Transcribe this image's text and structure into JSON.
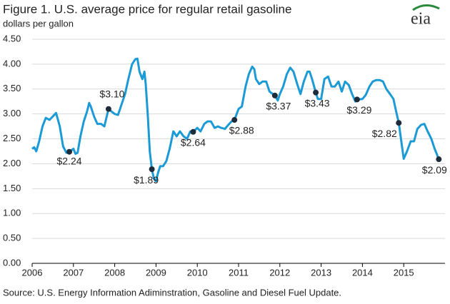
{
  "chart_data": {
    "type": "line",
    "title": "Figure 1. U.S. average price for regular retail gasoline",
    "subtitle": "dollars per gallon",
    "source": "Source: U.S. Energy Information Adiminstration, Gasoline and Diesel Fuel Update.",
    "logo": "eia",
    "grid": true,
    "xlim": [
      2006,
      2016
    ],
    "xticks": [
      2006,
      2007,
      2008,
      2009,
      2010,
      2011,
      2012,
      2013,
      2014,
      2015
    ],
    "ylim": [
      0,
      4.5
    ],
    "yticks": [
      {
        "value": 0,
        "label": "0.00"
      },
      {
        "value": 0.5,
        "label": "0.50"
      },
      {
        "value": 1,
        "label": "1.00"
      },
      {
        "value": 1.5,
        "label": "1.50"
      },
      {
        "value": 2,
        "label": "2.00"
      },
      {
        "value": 2.5,
        "label": "2.50"
      },
      {
        "value": 3,
        "label": "3.00"
      },
      {
        "value": 3.5,
        "label": "3.50"
      },
      {
        "value": 4,
        "label": "4.00"
      },
      {
        "value": 4.5,
        "label": "4.50"
      }
    ],
    "series": [
      {
        "color": "#1b9ad6",
        "x": [
          2006.0,
          2006.05,
          2006.1,
          2006.17,
          2006.25,
          2006.33,
          2006.42,
          2006.5,
          2006.58,
          2006.67,
          2006.75,
          2006.83,
          2006.9,
          2007.0,
          2007.05,
          2007.1,
          2007.17,
          2007.25,
          2007.33,
          2007.38,
          2007.42,
          2007.5,
          2007.58,
          2007.67,
          2007.75,
          2007.85,
          2007.92,
          2008.0,
          2008.08,
          2008.17,
          2008.25,
          2008.33,
          2008.42,
          2008.5,
          2008.55,
          2008.6,
          2008.67,
          2008.72,
          2008.75,
          2008.8,
          2008.85,
          2008.9,
          2008.95,
          2009.0,
          2009.05,
          2009.1,
          2009.17,
          2009.25,
          2009.33,
          2009.42,
          2009.5,
          2009.58,
          2009.67,
          2009.75,
          2009.83,
          2009.9,
          2010.0,
          2010.08,
          2010.17,
          2010.25,
          2010.33,
          2010.42,
          2010.5,
          2010.58,
          2010.67,
          2010.75,
          2010.83,
          2010.9,
          2011.0,
          2011.08,
          2011.17,
          2011.25,
          2011.33,
          2011.38,
          2011.42,
          2011.5,
          2011.58,
          2011.67,
          2011.75,
          2011.83,
          2011.88,
          2011.95,
          2012.0,
          2012.08,
          2012.17,
          2012.25,
          2012.33,
          2012.42,
          2012.5,
          2012.58,
          2012.67,
          2012.72,
          2012.78,
          2012.87,
          2012.92,
          2013.0,
          2013.08,
          2013.17,
          2013.25,
          2013.33,
          2013.42,
          2013.5,
          2013.58,
          2013.67,
          2013.75,
          2013.83,
          2013.87,
          2014.0,
          2014.08,
          2014.17,
          2014.25,
          2014.33,
          2014.42,
          2014.5,
          2014.58,
          2014.67,
          2014.75,
          2014.83,
          2014.88,
          2014.95,
          2015.0,
          2015.08,
          2015.17,
          2015.25,
          2015.33,
          2015.42,
          2015.5,
          2015.58,
          2015.67,
          2015.75,
          2015.8,
          2015.85
        ],
        "values": [
          2.3,
          2.33,
          2.25,
          2.45,
          2.75,
          2.92,
          2.88,
          2.95,
          3.02,
          2.75,
          2.35,
          2.22,
          2.24,
          2.3,
          2.2,
          2.22,
          2.55,
          2.85,
          3.05,
          3.22,
          3.15,
          2.95,
          2.8,
          2.8,
          2.75,
          3.1,
          3.05,
          3.0,
          2.98,
          3.2,
          3.4,
          3.7,
          4.0,
          4.1,
          4.11,
          3.85,
          3.7,
          3.85,
          3.6,
          3.0,
          2.25,
          1.89,
          1.7,
          1.65,
          1.82,
          1.95,
          1.95,
          2.05,
          2.3,
          2.65,
          2.55,
          2.65,
          2.55,
          2.5,
          2.65,
          2.64,
          2.72,
          2.65,
          2.8,
          2.85,
          2.85,
          2.72,
          2.75,
          2.72,
          2.7,
          2.78,
          2.85,
          2.88,
          3.1,
          3.15,
          3.55,
          3.8,
          3.95,
          3.9,
          3.7,
          3.6,
          3.65,
          3.65,
          3.45,
          3.4,
          3.37,
          3.27,
          3.4,
          3.55,
          3.8,
          3.93,
          3.85,
          3.6,
          3.4,
          3.65,
          3.85,
          3.85,
          3.7,
          3.43,
          3.3,
          3.3,
          3.7,
          3.75,
          3.55,
          3.55,
          3.65,
          3.45,
          3.65,
          3.58,
          3.4,
          3.25,
          3.29,
          3.3,
          3.38,
          3.55,
          3.65,
          3.68,
          3.68,
          3.65,
          3.5,
          3.4,
          3.3,
          3.0,
          2.82,
          2.4,
          2.1,
          2.25,
          2.45,
          2.45,
          2.7,
          2.78,
          2.8,
          2.65,
          2.5,
          2.3,
          2.2,
          2.09
        ]
      }
    ],
    "points": {
      "color": "#1d2b3a",
      "x": [
        2006.9,
        2007.85,
        2008.9,
        2009.9,
        2010.9,
        2011.88,
        2012.87,
        2013.87,
        2014.88,
        2015.85
      ],
      "values": [
        2.24,
        3.1,
        1.89,
        2.64,
        2.88,
        3.37,
        3.43,
        3.29,
        2.82,
        2.09
      ],
      "value_labels": [
        "$2.24",
        "$3.10",
        "$1.89",
        "$2.64",
        "$2.88",
        "$3.37",
        "$3.43",
        "$3.29",
        "$2.82",
        "$2.09"
      ]
    }
  }
}
